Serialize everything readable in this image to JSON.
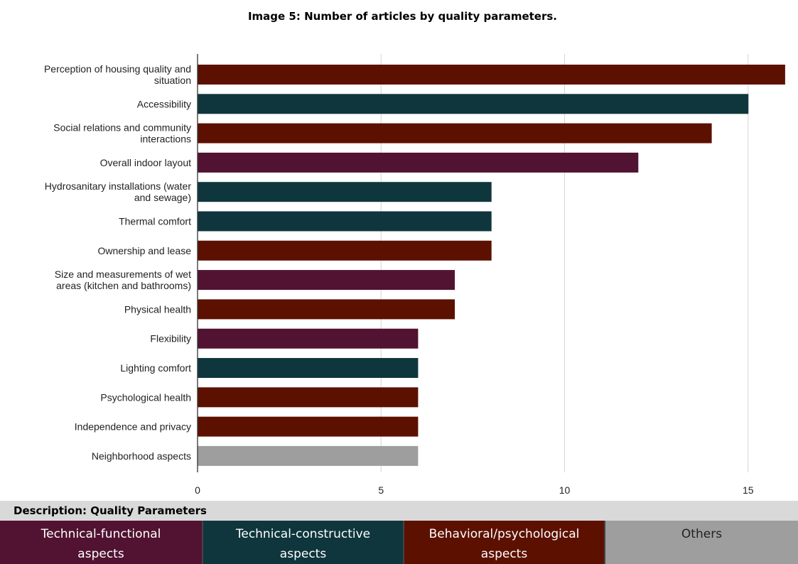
{
  "title": "Image 5: Number of articles by quality parameters.",
  "colors": {
    "technical_functional": "#511331",
    "technical_constructive": "#0f363d",
    "behavioral_psychological": "#5c1100",
    "others": "#9e9e9e",
    "gridline": "#d5d5d5",
    "axis": "#333333"
  },
  "chart_data": {
    "type": "bar",
    "orientation": "horizontal",
    "categories": [
      [
        "Perception of housing quality and",
        "situation"
      ],
      [
        "Accessibility"
      ],
      [
        "Social relations and community",
        "interactions"
      ],
      [
        "Overall indoor layout"
      ],
      [
        "Hydrosanitary installations (water",
        "and sewage)"
      ],
      [
        "Thermal comfort"
      ],
      [
        "Ownership and lease"
      ],
      [
        "Size and measurements of wet",
        "areas (kitchen and bathrooms)"
      ],
      [
        "Physical health"
      ],
      [
        "Flexibility"
      ],
      [
        "Lighting comfort"
      ],
      [
        "Psychological health"
      ],
      [
        "Independence and privacy"
      ],
      [
        "Neighborhood aspects"
      ]
    ],
    "values": [
      16,
      15,
      14,
      12,
      8,
      8,
      8,
      7,
      7,
      6,
      6,
      6,
      6,
      6
    ],
    "groups": [
      "behavioral_psychological",
      "technical_constructive",
      "behavioral_psychological",
      "technical_functional",
      "technical_constructive",
      "technical_constructive",
      "behavioral_psychological",
      "technical_functional",
      "behavioral_psychological",
      "technical_functional",
      "technical_constructive",
      "behavioral_psychological",
      "behavioral_psychological",
      "others"
    ],
    "xticks": [
      0,
      5,
      10,
      15
    ],
    "xlim": [
      0,
      16.3
    ],
    "grid": true
  },
  "description": {
    "header": "Description: Quality Parameters",
    "legend": [
      {
        "group": "technical_functional",
        "lines": [
          "Technical-functional",
          "aspects"
        ]
      },
      {
        "group": "technical_constructive",
        "lines": [
          "Technical-constructive",
          "aspects"
        ]
      },
      {
        "group": "behavioral_psychological",
        "lines": [
          "Behavioral/psychological",
          "aspects"
        ]
      },
      {
        "group": "others",
        "lines": [
          "Others"
        ]
      }
    ]
  }
}
